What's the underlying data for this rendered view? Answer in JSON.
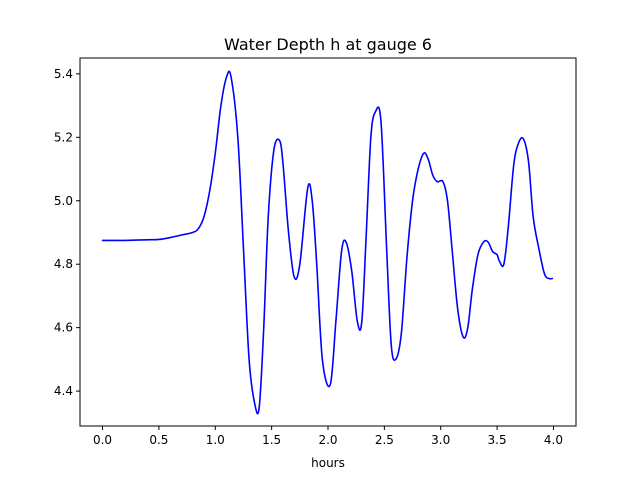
{
  "chart_data": {
    "type": "line",
    "title": "Water Depth h at gauge 6",
    "xlabel": "hours",
    "ylabel": "",
    "xlim": [
      -0.2,
      4.2
    ],
    "ylim": [
      4.29,
      5.45
    ],
    "xticks": [
      0.0,
      0.5,
      1.0,
      1.5,
      2.0,
      2.5,
      3.0,
      3.5,
      4.0
    ],
    "xtick_labels": [
      "0.0",
      "0.5",
      "1.0",
      "1.5",
      "2.0",
      "2.5",
      "3.0",
      "3.5",
      "4.0"
    ],
    "yticks": [
      4.4,
      4.6,
      4.8,
      5.0,
      5.2,
      5.4
    ],
    "ytick_labels": [
      "4.4",
      "4.6",
      "4.8",
      "5.0",
      "5.2",
      "5.4"
    ],
    "grid": false,
    "legend": "none",
    "series": [
      {
        "color": "#0000ff",
        "x": [
          0.0,
          0.1,
          0.2,
          0.3,
          0.4,
          0.5,
          0.6,
          0.7,
          0.8,
          0.85,
          0.9,
          0.95,
          1.0,
          1.05,
          1.1,
          1.14,
          1.2,
          1.25,
          1.3,
          1.35,
          1.39,
          1.43,
          1.47,
          1.52,
          1.57,
          1.6,
          1.65,
          1.7,
          1.75,
          1.82,
          1.86,
          1.9,
          1.95,
          2.02,
          2.07,
          2.12,
          2.16,
          2.21,
          2.26,
          2.3,
          2.34,
          2.38,
          2.42,
          2.47,
          2.52,
          2.56,
          2.6,
          2.65,
          2.7,
          2.75,
          2.8,
          2.85,
          2.89,
          2.93,
          2.97,
          3.02,
          3.06,
          3.1,
          3.15,
          3.2,
          3.24,
          3.28,
          3.33,
          3.38,
          3.42,
          3.46,
          3.5,
          3.52,
          3.56,
          3.6,
          3.65,
          3.7,
          3.74,
          3.78,
          3.82,
          3.87,
          3.92,
          3.96,
          3.99
        ],
        "y": [
          4.875,
          4.875,
          4.875,
          4.876,
          4.877,
          4.878,
          4.884,
          4.892,
          4.9,
          4.912,
          4.95,
          5.03,
          5.15,
          5.3,
          5.39,
          5.39,
          5.2,
          4.85,
          4.5,
          4.36,
          4.35,
          4.6,
          4.95,
          5.16,
          5.19,
          5.12,
          4.9,
          4.76,
          4.8,
          5.04,
          5.0,
          4.8,
          4.5,
          4.42,
          4.62,
          4.84,
          4.87,
          4.78,
          4.62,
          4.62,
          4.9,
          5.2,
          5.28,
          5.25,
          4.85,
          4.55,
          4.5,
          4.58,
          4.82,
          5.0,
          5.1,
          5.15,
          5.13,
          5.08,
          5.06,
          5.06,
          5.0,
          4.85,
          4.66,
          4.57,
          4.6,
          4.72,
          4.83,
          4.87,
          4.87,
          4.84,
          4.83,
          4.81,
          4.8,
          4.92,
          5.12,
          5.19,
          5.19,
          5.12,
          4.95,
          4.85,
          4.77,
          4.755,
          4.755
        ]
      }
    ]
  }
}
